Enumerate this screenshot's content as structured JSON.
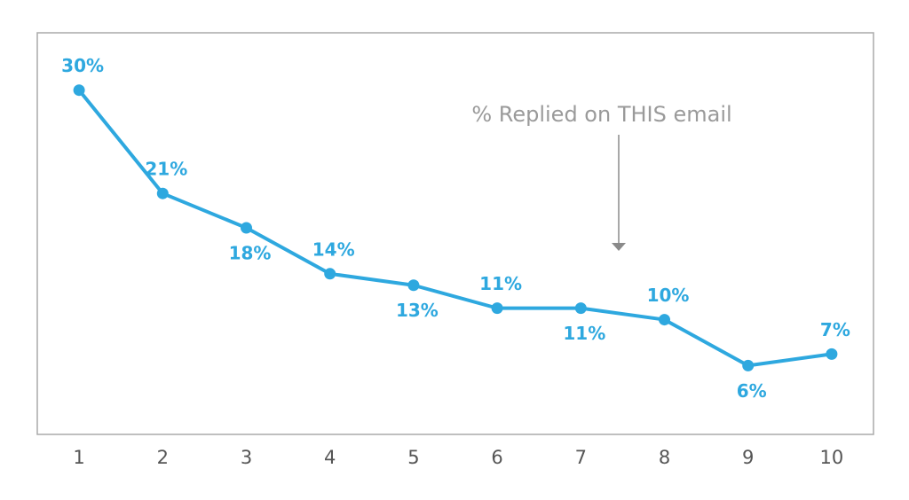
{
  "chart_data": {
    "type": "line",
    "annotation": "% Replied on THIS email",
    "categories": [
      "1",
      "2",
      "3",
      "4",
      "5",
      "6",
      "7",
      "8",
      "9",
      "10"
    ],
    "series": [
      {
        "name": "% Replied",
        "color": "#2ea8df",
        "values": [
          30,
          21,
          18,
          14,
          13,
          11,
          11,
          10,
          6,
          7
        ],
        "value_labels": [
          "30%",
          "21%",
          "18%",
          "14%",
          "13%",
          "11%",
          "11%",
          "10%",
          "6%",
          "7%"
        ]
      }
    ],
    "ylim": [
      0,
      35
    ]
  }
}
